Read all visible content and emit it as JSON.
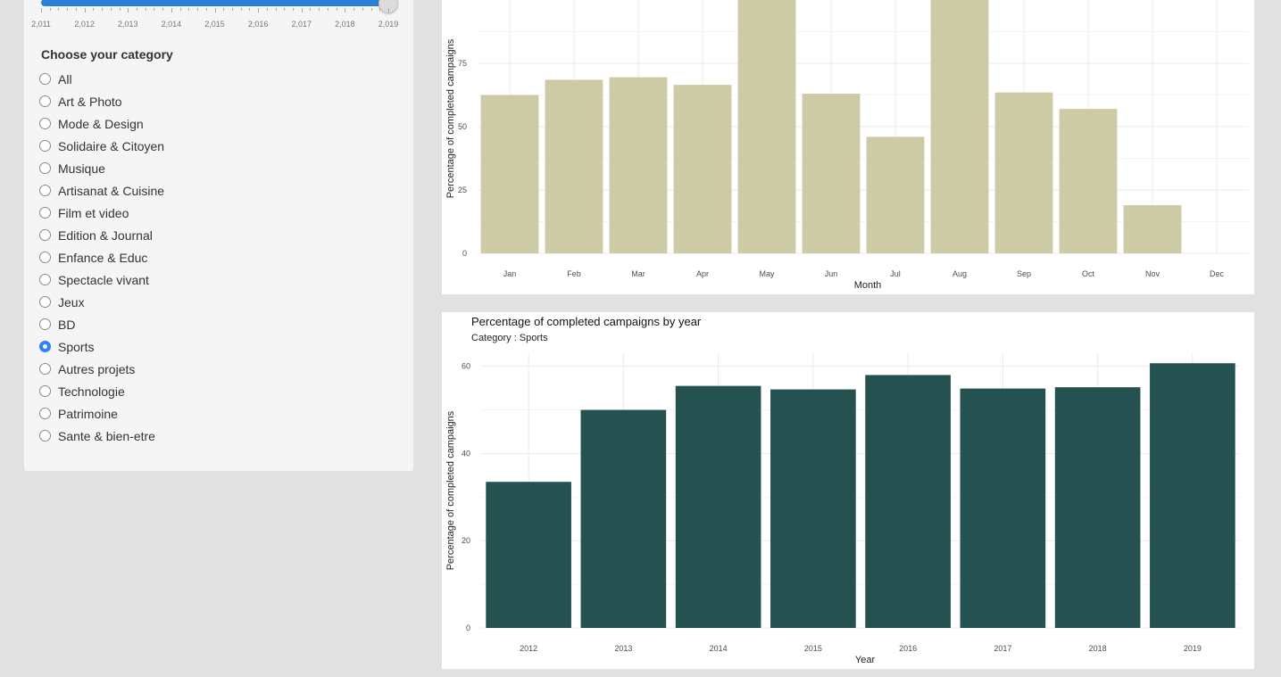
{
  "year_slider": {
    "tick_labels": [
      "2,011",
      "2,012",
      "2,013",
      "2,014",
      "2,015",
      "2,016",
      "2,017",
      "2,018",
      "2,019"
    ],
    "selected_fraction": 1.0,
    "fill_color": "#2c7fd6"
  },
  "category": {
    "title": "Choose your category",
    "options": [
      "All",
      "Art & Photo",
      "Mode & Design",
      "Solidaire & Citoyen",
      "Musique",
      "Artisanat & Cuisine",
      "Film et video",
      "Edition & Journal",
      "Enfance & Educ",
      "Spectacle vivant",
      "Jeux",
      "BD",
      "Sports",
      "Autres projets",
      "Technologie",
      "Patrimoine",
      "Sante & bien-etre"
    ],
    "selected": "Sports",
    "accent_color": "#2c83f5"
  },
  "chart_data": [
    {
      "type": "bar",
      "title": "",
      "subtitle": "",
      "xlabel": "Month",
      "ylabel": "Percentage of completed campaigns",
      "categories": [
        "Jan",
        "Feb",
        "Mar",
        "Apr",
        "May",
        "Jun",
        "Jul",
        "Aug",
        "Sep",
        "Oct",
        "Nov",
        "Dec"
      ],
      "values": [
        62.5,
        68.5,
        69.5,
        66.5,
        100,
        63,
        46,
        100,
        63.5,
        57,
        19,
        0
      ],
      "yticks": [
        0,
        25,
        50,
        75
      ],
      "ylim": [
        0,
        100
      ],
      "bar_color": "#cdcba6",
      "grid": true
    },
    {
      "type": "bar",
      "title": "Percentage of completed campaigns by year",
      "subtitle": "Category : Sports",
      "xlabel": "Year",
      "ylabel": "Percentage of completed campaigns",
      "categories": [
        "2012",
        "2013",
        "2014",
        "2015",
        "2016",
        "2017",
        "2018",
        "2019"
      ],
      "values": [
        33.5,
        50,
        55.5,
        54.7,
        58,
        54.9,
        55.2,
        60.7
      ],
      "yticks": [
        0,
        20,
        40,
        60
      ],
      "ylim": [
        0,
        63
      ],
      "bar_color": "#255150",
      "grid": true
    }
  ]
}
